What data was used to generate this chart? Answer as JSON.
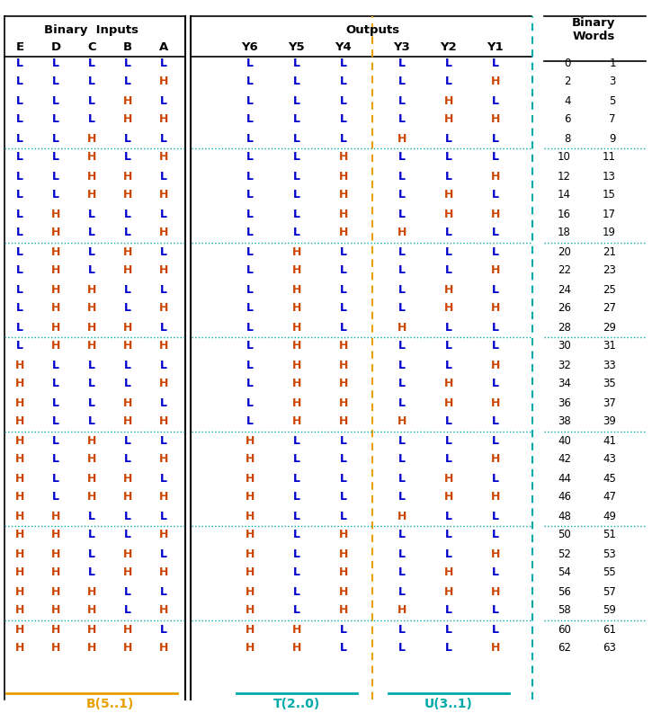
{
  "title_inputs": "Binary  Inputs",
  "title_outputs": "Outputs",
  "col_inputs": [
    "E",
    "D",
    "C",
    "B",
    "A"
  ],
  "col_outputs": [
    "Y6",
    "Y5",
    "Y4",
    "Y3",
    "Y2",
    "Y1"
  ],
  "label_B": "B(5..1)",
  "label_T": "T(2..0)",
  "label_U": "U(3..1)",
  "color_H": "#cc4400",
  "color_L": "#0000cc",
  "color_teal": "#00aaaa",
  "color_orange": "#e8a000",
  "color_words": "#222222",
  "rows": [
    [
      "L",
      "L",
      "L",
      "L",
      "L",
      "L",
      "L",
      "L",
      "L",
      "L",
      "L",
      0,
      1
    ],
    [
      "L",
      "L",
      "L",
      "L",
      "H",
      "L",
      "L",
      "L",
      "L",
      "L",
      "H",
      2,
      3
    ],
    [
      "L",
      "L",
      "L",
      "H",
      "L",
      "L",
      "L",
      "L",
      "L",
      "H",
      "L",
      4,
      5
    ],
    [
      "L",
      "L",
      "L",
      "H",
      "H",
      "L",
      "L",
      "L",
      "L",
      "H",
      "H",
      6,
      7
    ],
    [
      "L",
      "L",
      "H",
      "L",
      "L",
      "L",
      "L",
      "L",
      "H",
      "L",
      "L",
      8,
      9
    ],
    [
      "L",
      "L",
      "H",
      "L",
      "H",
      "L",
      "L",
      "H",
      "L",
      "L",
      "L",
      10,
      11
    ],
    [
      "L",
      "L",
      "H",
      "H",
      "L",
      "L",
      "L",
      "H",
      "L",
      "L",
      "H",
      12,
      13
    ],
    [
      "L",
      "L",
      "H",
      "H",
      "H",
      "L",
      "L",
      "H",
      "L",
      "H",
      "L",
      14,
      15
    ],
    [
      "L",
      "H",
      "L",
      "L",
      "L",
      "L",
      "L",
      "H",
      "L",
      "H",
      "H",
      16,
      17
    ],
    [
      "L",
      "H",
      "L",
      "L",
      "H",
      "L",
      "L",
      "H",
      "H",
      "L",
      "L",
      18,
      19
    ],
    [
      "L",
      "H",
      "L",
      "H",
      "L",
      "L",
      "H",
      "L",
      "L",
      "L",
      "L",
      20,
      21
    ],
    [
      "L",
      "H",
      "L",
      "H",
      "H",
      "L",
      "H",
      "L",
      "L",
      "L",
      "H",
      22,
      23
    ],
    [
      "L",
      "H",
      "H",
      "L",
      "L",
      "L",
      "H",
      "L",
      "L",
      "H",
      "L",
      24,
      25
    ],
    [
      "L",
      "H",
      "H",
      "L",
      "H",
      "L",
      "H",
      "L",
      "L",
      "H",
      "H",
      26,
      27
    ],
    [
      "L",
      "H",
      "H",
      "H",
      "L",
      "L",
      "H",
      "L",
      "H",
      "L",
      "L",
      28,
      29
    ],
    [
      "L",
      "H",
      "H",
      "H",
      "H",
      "L",
      "H",
      "H",
      "L",
      "L",
      "L",
      30,
      31
    ],
    [
      "H",
      "L",
      "L",
      "L",
      "L",
      "L",
      "H",
      "H",
      "L",
      "L",
      "H",
      32,
      33
    ],
    [
      "H",
      "L",
      "L",
      "L",
      "H",
      "L",
      "H",
      "H",
      "L",
      "H",
      "L",
      34,
      35
    ],
    [
      "H",
      "L",
      "L",
      "H",
      "L",
      "L",
      "H",
      "H",
      "L",
      "H",
      "H",
      36,
      37
    ],
    [
      "H",
      "L",
      "L",
      "H",
      "H",
      "L",
      "H",
      "H",
      "H",
      "L",
      "L",
      38,
      39
    ],
    [
      "H",
      "L",
      "H",
      "L",
      "L",
      "H",
      "L",
      "L",
      "L",
      "L",
      "L",
      40,
      41
    ],
    [
      "H",
      "L",
      "H",
      "L",
      "H",
      "H",
      "L",
      "L",
      "L",
      "L",
      "H",
      42,
      43
    ],
    [
      "H",
      "L",
      "H",
      "H",
      "L",
      "H",
      "L",
      "L",
      "L",
      "H",
      "L",
      44,
      45
    ],
    [
      "H",
      "L",
      "H",
      "H",
      "H",
      "H",
      "L",
      "L",
      "L",
      "H",
      "H",
      46,
      47
    ],
    [
      "H",
      "H",
      "L",
      "L",
      "L",
      "H",
      "L",
      "L",
      "H",
      "L",
      "L",
      48,
      49
    ],
    [
      "H",
      "H",
      "L",
      "L",
      "H",
      "H",
      "L",
      "H",
      "L",
      "L",
      "L",
      50,
      51
    ],
    [
      "H",
      "H",
      "L",
      "H",
      "L",
      "H",
      "L",
      "H",
      "L",
      "L",
      "H",
      52,
      53
    ],
    [
      "H",
      "H",
      "L",
      "H",
      "H",
      "H",
      "L",
      "H",
      "L",
      "H",
      "L",
      54,
      55
    ],
    [
      "H",
      "H",
      "H",
      "L",
      "L",
      "H",
      "L",
      "H",
      "L",
      "H",
      "H",
      56,
      57
    ],
    [
      "H",
      "H",
      "H",
      "L",
      "H",
      "H",
      "L",
      "H",
      "H",
      "L",
      "L",
      58,
      59
    ],
    [
      "H",
      "H",
      "H",
      "H",
      "L",
      "H",
      "H",
      "L",
      "L",
      "L",
      "L",
      60,
      61
    ],
    [
      "H",
      "H",
      "H",
      "H",
      "H",
      "H",
      "H",
      "L",
      "L",
      "L",
      "H",
      62,
      63
    ]
  ],
  "teal_separators_before": [
    5,
    10,
    15,
    20,
    25,
    30,
    40,
    50,
    60
  ],
  "dotted_separators_before": [
    30,
    32
  ]
}
